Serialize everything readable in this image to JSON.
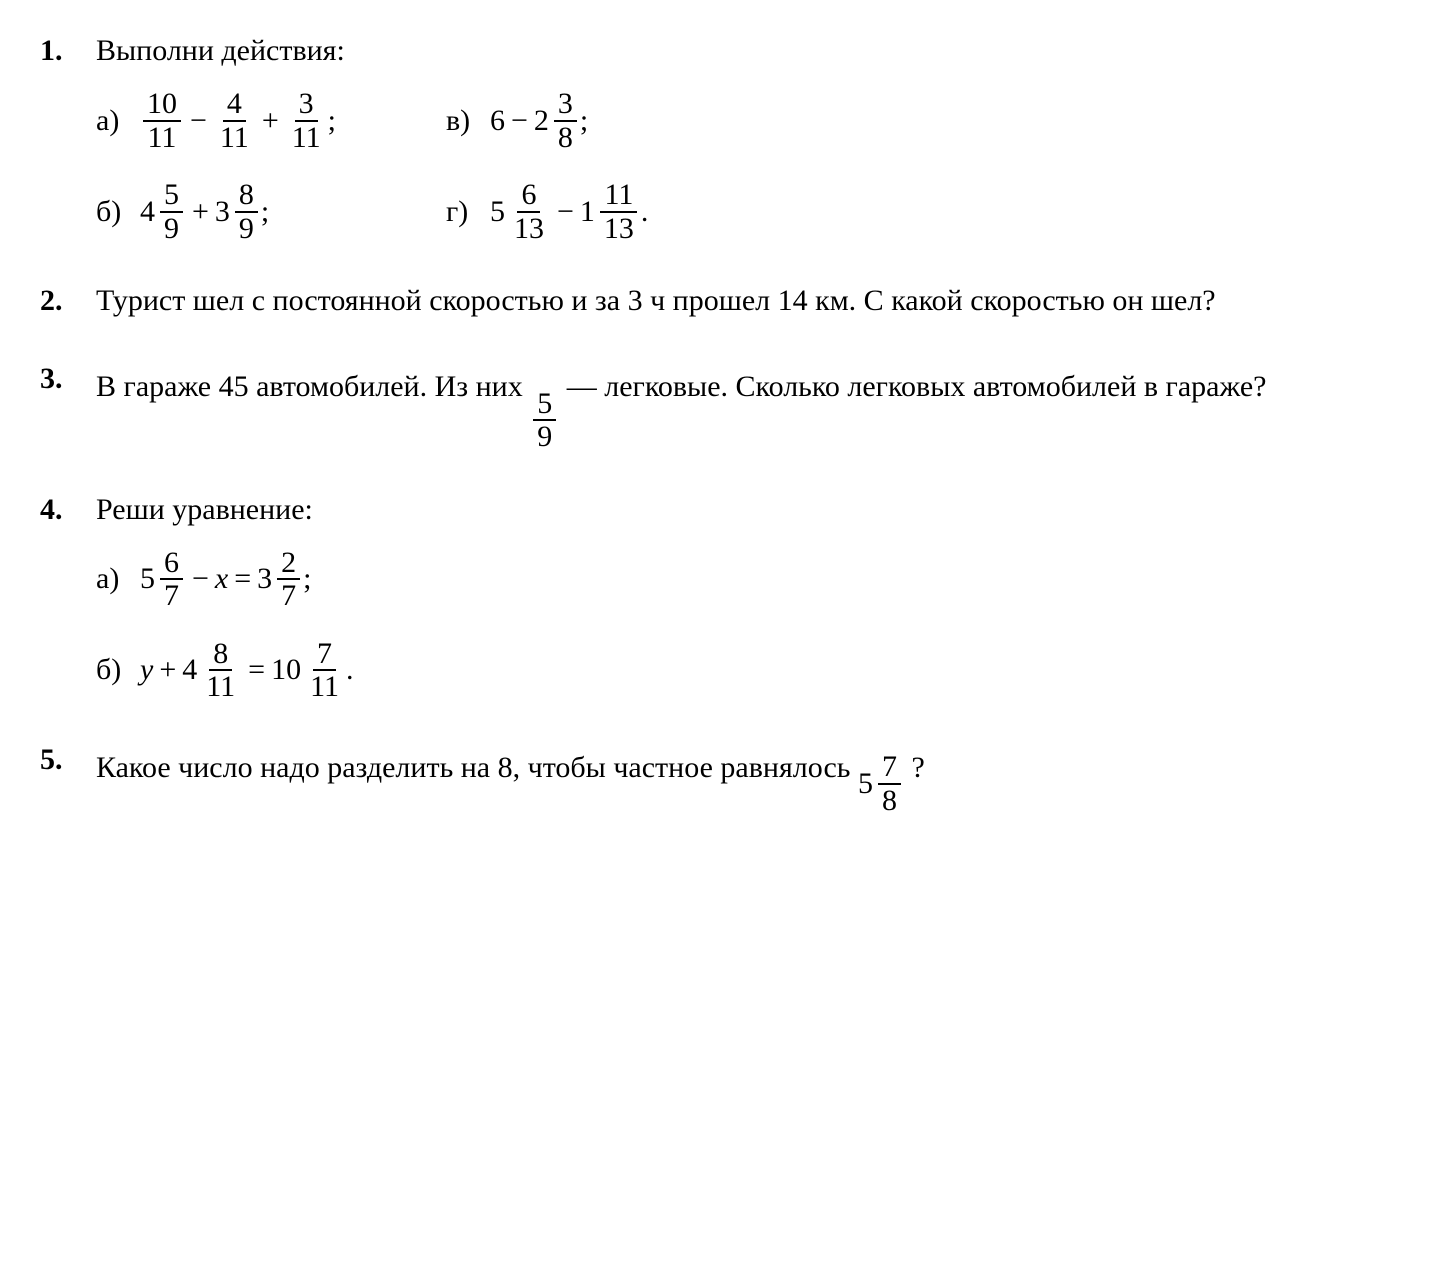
{
  "page": {
    "background": "#ffffff",
    "text_color": "#000000",
    "font_family": "Times New Roman / Century Schoolbook",
    "base_fontsize_pt": 22
  },
  "problems": {
    "p1": {
      "number": "1.",
      "prompt": "Выполни действия:",
      "a": {
        "label": "а)",
        "f1_num": "10",
        "f1_den": "11",
        "op1": "−",
        "f2_num": "4",
        "f2_den": "11",
        "op2": "+",
        "f3_num": "3",
        "f3_den": "11",
        "tail": ";"
      },
      "b": {
        "label": "б)",
        "m1_whole": "4",
        "m1_num": "5",
        "m1_den": "9",
        "op1": "+",
        "m2_whole": "3",
        "m2_num": "8",
        "m2_den": "9",
        "tail": ";"
      },
      "v": {
        "label": "в)",
        "lhs": "6",
        "op1": "−",
        "m1_whole": "2",
        "m1_num": "3",
        "m1_den": "8",
        "tail": ";"
      },
      "g": {
        "label": "г)",
        "m1_whole": "5",
        "m1_num": "6",
        "m1_den": "13",
        "op1": "−",
        "m2_whole": "1",
        "m2_num": "11",
        "m2_den": "13",
        "tail": "."
      }
    },
    "p2": {
      "number": "2.",
      "text": "Турист шел с постоянной скоростью и за 3 ч прошел 14 км. С какой скоростью он шел?"
    },
    "p3": {
      "number": "3.",
      "t1": "В гараже 45 автомобилей. Из них ",
      "f_num": "5",
      "f_den": "9",
      "t2": " — легковые. Сколько легковых автомобилей в гараже?"
    },
    "p4": {
      "number": "4.",
      "prompt": "Реши уравнение:",
      "a": {
        "label": "а)",
        "m1_whole": "5",
        "m1_num": "6",
        "m1_den": "7",
        "op1": "−",
        "var": "x",
        "op2": "=",
        "m2_whole": "3",
        "m2_num": "2",
        "m2_den": "7",
        "tail": ";"
      },
      "b": {
        "label": "б)",
        "var": "y",
        "op1": "+",
        "m1_whole": "4",
        "m1_num": "8",
        "m1_den": "11",
        "op2": "=",
        "m2_whole": "10",
        "m2_num": "7",
        "m2_den": "11",
        "tail": "."
      }
    },
    "p5": {
      "number": "5.",
      "t1": "Какое число надо разделить на 8, чтобы частное равнялось ",
      "m_whole": "5",
      "m_num": "7",
      "m_den": "8",
      "t2": "?"
    }
  }
}
